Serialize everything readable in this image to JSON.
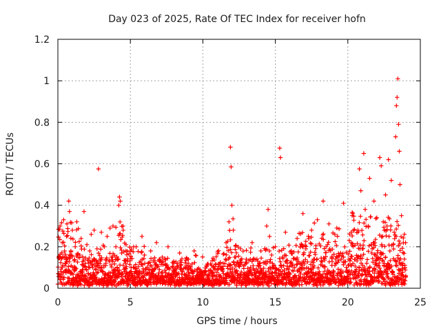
{
  "chart_data": {
    "type": "scatter",
    "title": "Day 023 of 2025, Rate Of TEC Index for receiver hofn",
    "xlabel": "GPS time / hours",
    "ylabel": "ROTI / TECUs",
    "xlim": [
      0,
      25
    ],
    "ylim": [
      0,
      1.2
    ],
    "xticks": [
      "0",
      "5",
      "10",
      "15",
      "20",
      "25"
    ],
    "xtick_values": [
      0,
      5,
      10,
      15,
      20,
      25
    ],
    "yticks": [
      "0",
      "0.2",
      "0.4",
      "0.6",
      "0.8",
      "1",
      "1.2"
    ],
    "ytick_values": [
      0,
      0.2,
      0.4,
      0.6,
      0.8,
      1.0,
      1.2
    ],
    "grid": true,
    "marker": "plus",
    "color": "#ff0000",
    "series": [
      {
        "values_note": "representative ROTI samples read from the plot (x in hours, y in TECU/min)",
        "points": [
          [
            0.0,
            0.02
          ],
          [
            0.1,
            0.15
          ],
          [
            0.15,
            0.3
          ],
          [
            0.2,
            0.08
          ],
          [
            0.3,
            0.22
          ],
          [
            0.4,
            0.33
          ],
          [
            0.5,
            0.12
          ],
          [
            0.6,
            0.25
          ],
          [
            0.7,
            0.05
          ],
          [
            0.75,
            0.42
          ],
          [
            0.8,
            0.37
          ],
          [
            0.9,
            0.18
          ],
          [
            1.0,
            0.28
          ],
          [
            1.1,
            0.09
          ],
          [
            1.2,
            0.2
          ],
          [
            1.3,
            0.32
          ],
          [
            1.4,
            0.06
          ],
          [
            1.5,
            0.16
          ],
          [
            1.6,
            0.24
          ],
          [
            1.7,
            0.04
          ],
          [
            1.8,
            0.37
          ],
          [
            1.9,
            0.12
          ],
          [
            2.0,
            0.21
          ],
          [
            2.1,
            0.07
          ],
          [
            2.2,
            0.18
          ],
          [
            2.3,
            0.26
          ],
          [
            2.4,
            0.1
          ],
          [
            2.5,
            0.28
          ],
          [
            2.6,
            0.05
          ],
          [
            2.7,
            0.19
          ],
          [
            2.8,
            0.575
          ],
          [
            2.9,
            0.14
          ],
          [
            3.0,
            0.27
          ],
          [
            3.1,
            0.08
          ],
          [
            3.2,
            0.2
          ],
          [
            3.3,
            0.11
          ],
          [
            3.4,
            0.25
          ],
          [
            3.5,
            0.06
          ],
          [
            3.6,
            0.29
          ],
          [
            3.7,
            0.15
          ],
          [
            3.8,
            0.3
          ],
          [
            3.9,
            0.09
          ],
          [
            4.0,
            0.2
          ],
          [
            4.1,
            0.05
          ],
          [
            4.2,
            0.4
          ],
          [
            4.25,
            0.44
          ],
          [
            4.3,
            0.42
          ],
          [
            4.4,
            0.17
          ],
          [
            4.5,
            0.28
          ],
          [
            4.6,
            0.08
          ],
          [
            4.7,
            0.21
          ],
          [
            4.8,
            0.13
          ],
          [
            4.9,
            0.06
          ],
          [
            5.0,
            0.18
          ],
          [
            5.2,
            0.1
          ],
          [
            5.4,
            0.2
          ],
          [
            5.6,
            0.05
          ],
          [
            5.8,
            0.25
          ],
          [
            6.0,
            0.12
          ],
          [
            6.2,
            0.07
          ],
          [
            6.4,
            0.18
          ],
          [
            6.6,
            0.04
          ],
          [
            6.8,
            0.22
          ],
          [
            7.0,
            0.09
          ],
          [
            7.2,
            0.15
          ],
          [
            7.4,
            0.06
          ],
          [
            7.6,
            0.2
          ],
          [
            7.8,
            0.04
          ],
          [
            8.0,
            0.12
          ],
          [
            8.2,
            0.07
          ],
          [
            8.4,
            0.17
          ],
          [
            8.6,
            0.05
          ],
          [
            8.8,
            0.1
          ],
          [
            9.0,
            0.14
          ],
          [
            9.2,
            0.03
          ],
          [
            9.4,
            0.18
          ],
          [
            9.6,
            0.06
          ],
          [
            9.8,
            0.09
          ],
          [
            10.0,
            0.04
          ],
          [
            10.2,
            0.08
          ],
          [
            10.4,
            0.05
          ],
          [
            10.6,
            0.11
          ],
          [
            10.8,
            0.03
          ],
          [
            11.0,
            0.09
          ],
          [
            11.2,
            0.06
          ],
          [
            11.4,
            0.12
          ],
          [
            11.6,
            0.22
          ],
          [
            11.8,
            0.32
          ],
          [
            11.9,
            0.68
          ],
          [
            11.95,
            0.585
          ],
          [
            12.0,
            0.4
          ],
          [
            12.1,
            0.28
          ],
          [
            12.2,
            0.15
          ],
          [
            12.4,
            0.07
          ],
          [
            12.6,
            0.19
          ],
          [
            12.8,
            0.05
          ],
          [
            13.0,
            0.14
          ],
          [
            13.2,
            0.08
          ],
          [
            13.4,
            0.22
          ],
          [
            13.6,
            0.06
          ],
          [
            13.8,
            0.11
          ],
          [
            14.0,
            0.18
          ],
          [
            14.2,
            0.07
          ],
          [
            14.4,
            0.3
          ],
          [
            14.5,
            0.38
          ],
          [
            14.6,
            0.25
          ],
          [
            14.8,
            0.12
          ],
          [
            15.0,
            0.2
          ],
          [
            15.2,
            0.06
          ],
          [
            15.3,
            0.675
          ],
          [
            15.35,
            0.63
          ],
          [
            15.5,
            0.15
          ],
          [
            15.7,
            0.27
          ],
          [
            15.9,
            0.09
          ],
          [
            16.1,
            0.18
          ],
          [
            16.3,
            0.05
          ],
          [
            16.5,
            0.24
          ],
          [
            16.7,
            0.12
          ],
          [
            16.9,
            0.36
          ],
          [
            17.1,
            0.19
          ],
          [
            17.3,
            0.08
          ],
          [
            17.5,
            0.28
          ],
          [
            17.7,
            0.14
          ],
          [
            17.9,
            0.33
          ],
          [
            18.1,
            0.06
          ],
          [
            18.3,
            0.42
          ],
          [
            18.5,
            0.2
          ],
          [
            18.7,
            0.31
          ],
          [
            18.9,
            0.11
          ],
          [
            19.1,
            0.26
          ],
          [
            19.3,
            0.07
          ],
          [
            19.5,
            0.17
          ],
          [
            19.7,
            0.41
          ],
          [
            19.9,
            0.1
          ],
          [
            20.1,
            0.23
          ],
          [
            20.3,
            0.35
          ],
          [
            20.5,
            0.08
          ],
          [
            20.7,
            0.28
          ],
          [
            20.8,
            0.575
          ],
          [
            20.9,
            0.47
          ],
          [
            21.0,
            0.19
          ],
          [
            21.1,
            0.65
          ],
          [
            21.2,
            0.38
          ],
          [
            21.3,
            0.12
          ],
          [
            21.4,
            0.3
          ],
          [
            21.5,
            0.53
          ],
          [
            21.6,
            0.21
          ],
          [
            21.7,
            0.05
          ],
          [
            21.8,
            0.42
          ],
          [
            21.9,
            0.16
          ],
          [
            22.0,
            0.34
          ],
          [
            22.1,
            0.07
          ],
          [
            22.2,
            0.63
          ],
          [
            22.3,
            0.59
          ],
          [
            22.4,
            0.25
          ],
          [
            22.5,
            0.11
          ],
          [
            22.6,
            0.45
          ],
          [
            22.7,
            0.3
          ],
          [
            22.8,
            0.62
          ],
          [
            22.9,
            0.18
          ],
          [
            23.0,
            0.52
          ],
          [
            23.1,
            0.08
          ],
          [
            23.2,
            0.27
          ],
          [
            23.3,
            0.73
          ],
          [
            23.35,
            0.88
          ],
          [
            23.4,
            0.92
          ],
          [
            23.45,
            1.01
          ],
          [
            23.5,
            0.79
          ],
          [
            23.55,
            0.66
          ],
          [
            23.6,
            0.5
          ],
          [
            23.7,
            0.35
          ],
          [
            23.8,
            0.12
          ],
          [
            23.9,
            0.26
          ],
          [
            24.0,
            0.06
          ]
        ]
      }
    ],
    "dense_band": {
      "note": "dense band of samples filling most of the 0-0.3 range throughout the day",
      "x_range": [
        0,
        24
      ],
      "y_range": [
        0.01,
        0.3
      ]
    }
  }
}
